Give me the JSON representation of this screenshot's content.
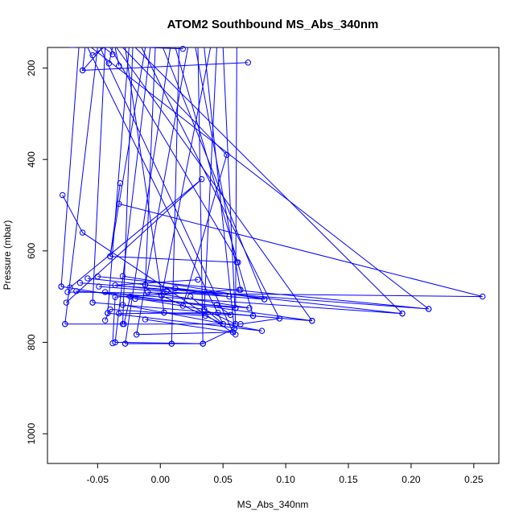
{
  "chart_data": {
    "type": "line",
    "title": "ATOM2 Southbound MS_Abs_340nm",
    "xlabel": "MS_Abs_340nm",
    "ylabel": "Pressure (mbar)",
    "xlim": [
      -0.09,
      0.27
    ],
    "ylim": [
      1065,
      155
    ],
    "y_reversed": true,
    "grid": false,
    "legend": "none",
    "x_ticks": [
      -0.05,
      0.0,
      0.05,
      0.1,
      0.15,
      0.2,
      0.25
    ],
    "x_tick_labels": [
      "-0.05",
      "0.00",
      "0.05",
      "0.10",
      "0.15",
      "0.20",
      "0.25"
    ],
    "y_ticks": [
      200,
      400,
      600,
      800,
      1000
    ],
    "y_tick_labels": [
      "200",
      "400",
      "600",
      "800",
      "1000"
    ],
    "marker": "open-circle",
    "series_color": "#0000ff",
    "series": [
      {
        "points": [
          [
            -0.072,
            155
          ],
          [
            -0.068,
            155
          ]
        ]
      },
      {
        "points": [
          [
            -0.046,
            155
          ],
          [
            -0.062,
            205
          ],
          [
            0.07,
            188
          ]
        ]
      },
      {
        "points": [
          [
            -0.054,
            172
          ],
          [
            -0.045,
            155
          ]
        ]
      },
      {
        "points": [
          [
            -0.041,
            190
          ],
          [
            -0.038,
            155
          ]
        ]
      },
      {
        "points": [
          [
            -0.038,
            170
          ],
          [
            -0.045,
            155
          ]
        ]
      },
      {
        "points": [
          [
            -0.033,
            195
          ],
          [
            -0.036,
            155
          ]
        ]
      },
      {
        "points": [
          [
            0.018,
            158
          ],
          [
            -0.01,
            155
          ]
        ]
      },
      {
        "points": [
          [
            -0.03,
            155
          ],
          [
            0.053,
            390
          ],
          [
            0.018,
            720
          ]
        ]
      },
      {
        "points": [
          [
            -0.078,
            478
          ],
          [
            -0.062,
            560
          ],
          [
            0.06,
            783
          ]
        ]
      },
      {
        "points": [
          [
            -0.033,
            497
          ],
          [
            0.257,
            700
          ],
          [
            -0.074,
            690
          ]
        ]
      },
      {
        "points": [
          [
            -0.032,
            452
          ],
          [
            -0.04,
            612
          ],
          [
            0.061,
            625
          ]
        ]
      },
      {
        "points": [
          [
            -0.079,
            678
          ],
          [
            0.035,
            728
          ],
          [
            0.06,
            760
          ]
        ]
      },
      {
        "points": [
          [
            -0.075,
            713
          ],
          [
            0.033,
            443
          ],
          [
            -0.072,
            680
          ]
        ]
      },
      {
        "points": [
          [
            -0.076,
            760
          ],
          [
            0.064,
            760
          ],
          [
            0.095,
            748
          ]
        ]
      },
      {
        "points": [
          [
            -0.067,
            688
          ],
          [
            0.193,
            737
          ],
          [
            -0.058,
            660
          ]
        ]
      },
      {
        "points": [
          [
            -0.064,
            670
          ],
          [
            0.214,
            727
          ],
          [
            -0.05,
            656
          ]
        ]
      },
      {
        "points": [
          [
            -0.054,
            713
          ],
          [
            0.121,
            753
          ],
          [
            -0.044,
            690
          ]
        ]
      },
      {
        "points": [
          [
            -0.049,
            678
          ],
          [
            0.083,
            706
          ],
          [
            -0.03,
            655
          ]
        ]
      },
      {
        "points": [
          [
            -0.044,
            752
          ],
          [
            -0.04,
            728
          ],
          [
            0.036,
            742
          ]
        ]
      },
      {
        "points": [
          [
            -0.042,
            736
          ],
          [
            0.081,
            775
          ],
          [
            -0.03,
            718
          ]
        ]
      },
      {
        "points": [
          [
            -0.038,
            802
          ],
          [
            -0.036,
            701
          ],
          [
            0.063,
            685
          ]
        ]
      },
      {
        "points": [
          [
            -0.036,
            800
          ],
          [
            0.034,
            803
          ],
          [
            0.059,
            770
          ]
        ]
      },
      {
        "points": [
          [
            -0.028,
            803
          ],
          [
            0.009,
            803
          ],
          [
            0.034,
            803
          ]
        ]
      },
      {
        "points": [
          [
            -0.033,
            737
          ],
          [
            0.046,
            735
          ],
          [
            0.074,
            742
          ]
        ]
      },
      {
        "points": [
          [
            -0.029,
            760
          ],
          [
            -0.024,
            700
          ],
          [
            0.06,
            725
          ]
        ]
      },
      {
        "points": [
          [
            -0.019,
            783
          ],
          [
            0.058,
            778
          ],
          [
            -0.012,
            750
          ]
        ]
      },
      {
        "points": [
          [
            -0.02,
            705
          ],
          [
            0.071,
            725
          ],
          [
            -0.01,
            690
          ]
        ]
      },
      {
        "points": [
          [
            -0.012,
            674
          ],
          [
            0.055,
            700
          ],
          [
            0.012,
            682
          ]
        ]
      },
      {
        "points": [
          [
            0.001,
            698
          ],
          [
            0.05,
            760
          ],
          [
            0.024,
            700
          ]
        ]
      },
      {
        "points": [
          [
            0.003,
            735
          ],
          [
            0.056,
            740
          ],
          [
            0.045,
            718
          ]
        ]
      },
      {
        "points": [
          [
            0.005,
            687
          ],
          [
            -0.036,
            675
          ],
          [
            0.03,
            663
          ]
        ]
      },
      {
        "points": [
          [
            -0.04,
            155
          ],
          [
            0.062,
            625
          ]
        ]
      },
      {
        "points": [
          [
            -0.02,
            155
          ],
          [
            0.193,
            737
          ]
        ]
      },
      {
        "points": [
          [
            -0.055,
            155
          ],
          [
            0.214,
            727
          ]
        ]
      },
      {
        "points": [
          [
            -0.035,
            155
          ],
          [
            0.121,
            753
          ]
        ]
      },
      {
        "points": [
          [
            -0.015,
            155
          ],
          [
            0.095,
            748
          ]
        ]
      },
      {
        "points": [
          [
            0.002,
            155
          ],
          [
            0.083,
            706
          ]
        ]
      },
      {
        "points": [
          [
            0.012,
            155
          ],
          [
            0.074,
            742
          ]
        ]
      },
      {
        "points": [
          [
            0.028,
            155
          ],
          [
            0.064,
            685
          ]
        ]
      },
      {
        "points": [
          [
            0.035,
            155
          ],
          [
            0.059,
            770
          ]
        ]
      },
      {
        "points": [
          [
            0.05,
            155
          ],
          [
            0.06,
            760
          ]
        ]
      },
      {
        "points": [
          [
            0.045,
            155
          ],
          [
            0.035,
            728
          ]
        ]
      },
      {
        "points": [
          [
            0.061,
            155
          ],
          [
            0.06,
            725
          ]
        ]
      },
      {
        "points": [
          [
            -0.06,
            155
          ],
          [
            -0.062,
            205
          ]
        ]
      },
      {
        "points": [
          [
            -0.065,
            155
          ],
          [
            -0.079,
            678
          ]
        ]
      },
      {
        "points": [
          [
            -0.05,
            155
          ],
          [
            -0.076,
            760
          ]
        ]
      },
      {
        "points": [
          [
            -0.044,
            155
          ],
          [
            -0.054,
            713
          ]
        ]
      },
      {
        "points": [
          [
            -0.025,
            155
          ],
          [
            -0.042,
            736
          ]
        ]
      },
      {
        "points": [
          [
            -0.008,
            155
          ],
          [
            -0.036,
            800
          ]
        ]
      },
      {
        "points": [
          [
            0.008,
            155
          ],
          [
            -0.028,
            803
          ]
        ]
      },
      {
        "points": [
          [
            0.022,
            155
          ],
          [
            -0.019,
            783
          ]
        ]
      },
      {
        "points": [
          [
            0.04,
            155
          ],
          [
            0.001,
            698
          ]
        ]
      },
      {
        "points": [
          [
            -0.022,
            155
          ],
          [
            -0.03,
            760
          ]
        ]
      },
      {
        "points": [
          [
            -0.004,
            155
          ],
          [
            -0.012,
            674
          ]
        ]
      },
      {
        "points": [
          [
            0.015,
            155
          ],
          [
            0.009,
            803
          ]
        ]
      },
      {
        "points": [
          [
            -0.028,
            155
          ],
          [
            0.003,
            735
          ]
        ]
      },
      {
        "points": [
          [
            0.03,
            155
          ],
          [
            0.034,
            803
          ]
        ]
      },
      {
        "points": [
          [
            -0.058,
            155
          ],
          [
            0.05,
            760
          ]
        ]
      },
      {
        "points": [
          [
            -0.048,
            155
          ],
          [
            0.058,
            778
          ]
        ]
      },
      {
        "points": [
          [
            -0.012,
            155
          ],
          [
            -0.04,
            612
          ]
        ]
      }
    ]
  }
}
